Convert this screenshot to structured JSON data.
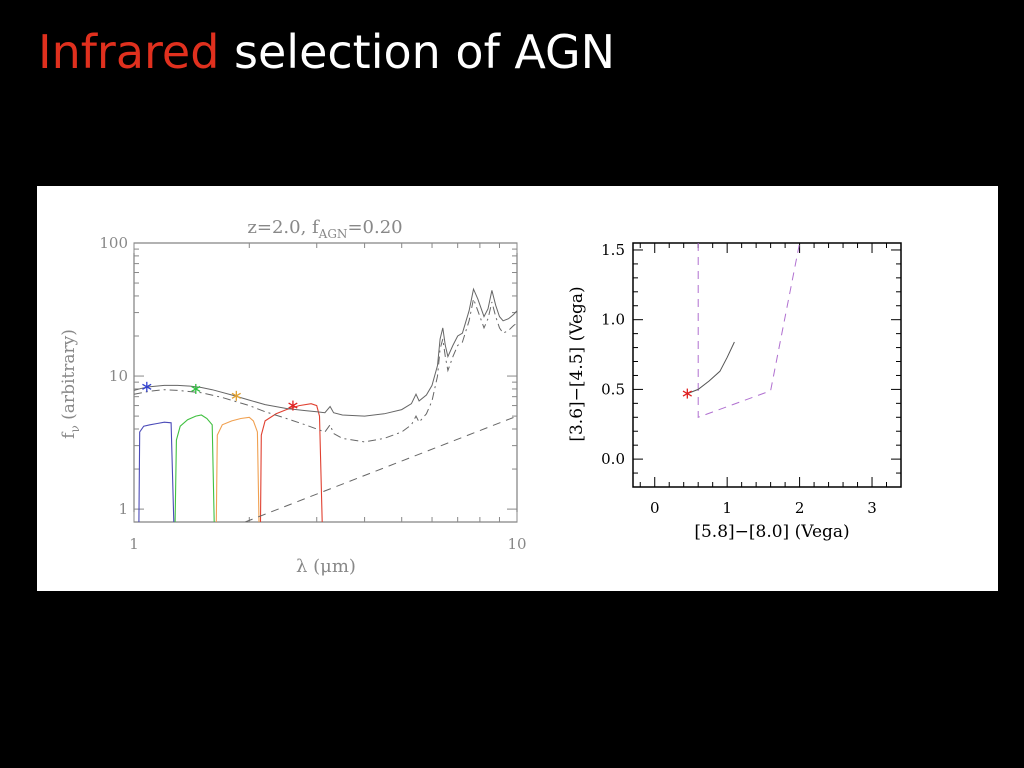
{
  "slide": {
    "title_highlight": "Infrared",
    "title_rest": " selection of AGN",
    "colors": {
      "background": "#000000",
      "highlight": "#e0301e",
      "text": "#ffffff"
    }
  },
  "chart_data": [
    {
      "type": "line",
      "title_parts": {
        "pre": "z=2.0,  f",
        "sub": "AGN",
        "post": "=0.20"
      },
      "xlabel": "λ (μm)",
      "ylabel_parts": {
        "pre": "f",
        "sub": "ν",
        "post": " (arbitrary)"
      },
      "x_scale": "log",
      "y_scale": "log",
      "xlim": [
        1,
        10
      ],
      "ylim": [
        0.8,
        100
      ],
      "xticks": [
        {
          "v": 1,
          "label": "1"
        },
        {
          "v": 10,
          "label": "10"
        }
      ],
      "yticks": [
        {
          "v": 1,
          "label": "1"
        },
        {
          "v": 10,
          "label": "10"
        },
        {
          "v": 100,
          "label": "100"
        }
      ],
      "series": [
        {
          "style": "solid",
          "color": "#666666",
          "points": [
            [
              1.0,
              7.8
            ],
            [
              1.05,
              8.1
            ],
            [
              1.1,
              8.3
            ],
            [
              1.2,
              8.5
            ],
            [
              1.3,
              8.5
            ],
            [
              1.4,
              8.4
            ],
            [
              1.5,
              8.2
            ],
            [
              1.6,
              7.9
            ],
            [
              1.8,
              7.2
            ],
            [
              2.0,
              6.6
            ],
            [
              2.2,
              6.1
            ],
            [
              2.5,
              5.7
            ],
            [
              2.8,
              5.5
            ],
            [
              3.0,
              5.4
            ],
            [
              3.15,
              5.3
            ],
            [
              3.25,
              5.9
            ],
            [
              3.32,
              5.3
            ],
            [
              3.5,
              5.1
            ],
            [
              4.0,
              5.0
            ],
            [
              4.5,
              5.2
            ],
            [
              5.0,
              5.6
            ],
            [
              5.3,
              6.2
            ],
            [
              5.45,
              7.3
            ],
            [
              5.55,
              6.5
            ],
            [
              5.8,
              7.2
            ],
            [
              6.0,
              8.5
            ],
            [
              6.2,
              12
            ],
            [
              6.3,
              19
            ],
            [
              6.4,
              23
            ],
            [
              6.5,
              17
            ],
            [
              6.6,
              14
            ],
            [
              6.8,
              17
            ],
            [
              7.0,
              20
            ],
            [
              7.2,
              21
            ],
            [
              7.5,
              31
            ],
            [
              7.7,
              45
            ],
            [
              7.9,
              38
            ],
            [
              8.2,
              28
            ],
            [
              8.4,
              32
            ],
            [
              8.6,
              44
            ],
            [
              8.8,
              34
            ],
            [
              9.0,
              28
            ],
            [
              9.2,
              26
            ],
            [
              9.5,
              27
            ],
            [
              9.8,
              29
            ],
            [
              10.0,
              31
            ]
          ]
        },
        {
          "style": "dashdot",
          "color": "#666666",
          "points": [
            [
              1.0,
              7.3
            ],
            [
              1.1,
              7.7
            ],
            [
              1.2,
              7.9
            ],
            [
              1.3,
              7.8
            ],
            [
              1.5,
              7.5
            ],
            [
              1.7,
              6.9
            ],
            [
              2.0,
              6.0
            ],
            [
              2.2,
              5.4
            ],
            [
              2.5,
              4.8
            ],
            [
              2.8,
              4.3
            ],
            [
              3.0,
              4.0
            ],
            [
              3.15,
              3.8
            ],
            [
              3.25,
              4.3
            ],
            [
              3.32,
              3.7
            ],
            [
              3.5,
              3.4
            ],
            [
              4.0,
              3.2
            ],
            [
              4.5,
              3.4
            ],
            [
              5.0,
              3.8
            ],
            [
              5.3,
              4.3
            ],
            [
              5.45,
              5.0
            ],
            [
              5.55,
              4.5
            ],
            [
              5.8,
              5.2
            ],
            [
              6.0,
              6.5
            ],
            [
              6.2,
              10
            ],
            [
              6.3,
              16
            ],
            [
              6.4,
              19
            ],
            [
              6.5,
              14
            ],
            [
              6.6,
              11
            ],
            [
              6.8,
              14
            ],
            [
              7.0,
              17
            ],
            [
              7.2,
              18
            ],
            [
              7.5,
              26
            ],
            [
              7.7,
              38
            ],
            [
              7.9,
              31
            ],
            [
              8.2,
              23
            ],
            [
              8.4,
              27
            ],
            [
              8.6,
              36
            ],
            [
              8.8,
              28
            ],
            [
              9.0,
              23
            ],
            [
              9.2,
              21
            ],
            [
              9.5,
              22
            ],
            [
              9.8,
              24
            ],
            [
              10.0,
              25
            ]
          ]
        },
        {
          "style": "dashed",
          "color": "#666666",
          "points": [
            [
              1.95,
              0.75
            ],
            [
              10.0,
              5.0
            ]
          ]
        }
      ],
      "filters": [
        {
          "color": "#4a4ab8",
          "points": [
            [
              1.03,
              0.8
            ],
            [
              1.035,
              3.8
            ],
            [
              1.06,
              4.2
            ],
            [
              1.1,
              4.3
            ],
            [
              1.15,
              4.4
            ],
            [
              1.2,
              4.5
            ],
            [
              1.25,
              4.45
            ],
            [
              1.27,
              0.8
            ]
          ]
        },
        {
          "color": "#40c040",
          "points": [
            [
              1.28,
              0.8
            ],
            [
              1.29,
              3.3
            ],
            [
              1.32,
              4.2
            ],
            [
              1.38,
              4.7
            ],
            [
              1.45,
              5.0
            ],
            [
              1.5,
              5.1
            ],
            [
              1.55,
              4.8
            ],
            [
              1.6,
              4.3
            ],
            [
              1.62,
              0.8
            ]
          ]
        },
        {
          "color": "#f0a050",
          "points": [
            [
              1.64,
              0.8
            ],
            [
              1.65,
              3.6
            ],
            [
              1.7,
              4.3
            ],
            [
              1.8,
              4.6
            ],
            [
              1.9,
              4.8
            ],
            [
              2.0,
              4.9
            ],
            [
              2.05,
              4.6
            ],
            [
              2.1,
              3.8
            ],
            [
              2.12,
              0.8
            ]
          ]
        },
        {
          "color": "#e04030",
          "points": [
            [
              2.14,
              0.8
            ],
            [
              2.15,
              3.6
            ],
            [
              2.2,
              4.6
            ],
            [
              2.35,
              5.2
            ],
            [
              2.5,
              5.6
            ],
            [
              2.7,
              6.0
            ],
            [
              2.9,
              6.2
            ],
            [
              3.0,
              6.0
            ],
            [
              3.05,
              5.0
            ],
            [
              3.1,
              0.8
            ]
          ]
        }
      ],
      "markers": [
        {
          "x": 1.08,
          "y": 8.3,
          "color": "#3040d0"
        },
        {
          "x": 1.45,
          "y": 8.0,
          "color": "#30c040"
        },
        {
          "x": 1.85,
          "y": 7.1,
          "color": "#e0a030"
        },
        {
          "x": 2.6,
          "y": 6.0,
          "color": "#e02020"
        }
      ]
    },
    {
      "type": "line",
      "xlabel": "[5.8]−[8.0] (Vega)",
      "ylabel": "[3.6]−[4.5] (Vega)",
      "xlim": [
        -0.3,
        3.4
      ],
      "ylim": [
        -0.2,
        1.55
      ],
      "xticks": [
        {
          "v": 0,
          "label": "0"
        },
        {
          "v": 1,
          "label": "1"
        },
        {
          "v": 2,
          "label": "2"
        },
        {
          "v": 3,
          "label": "3"
        }
      ],
      "yticks": [
        {
          "v": 0,
          "label": "0.0"
        },
        {
          "v": 0.5,
          "label": "0.5"
        },
        {
          "v": 1,
          "label": "1.0"
        },
        {
          "v": 1.5,
          "label": "1.5"
        }
      ],
      "series": [
        {
          "style": "solid",
          "color": "#555555",
          "points": [
            [
              0.45,
              0.47
            ],
            [
              0.6,
              0.5
            ],
            [
              0.75,
              0.56
            ],
            [
              0.9,
              0.63
            ],
            [
              1.0,
              0.73
            ],
            [
              1.1,
              0.84
            ]
          ]
        }
      ],
      "wedge": {
        "color": "#b070d0",
        "points": [
          [
            0.6,
            1.55
          ],
          [
            0.6,
            0.3
          ],
          [
            1.6,
            0.49
          ],
          [
            2.0,
            1.55
          ]
        ]
      },
      "markers": [
        {
          "x": 0.45,
          "y": 0.47,
          "color": "#e02020"
        }
      ]
    }
  ]
}
